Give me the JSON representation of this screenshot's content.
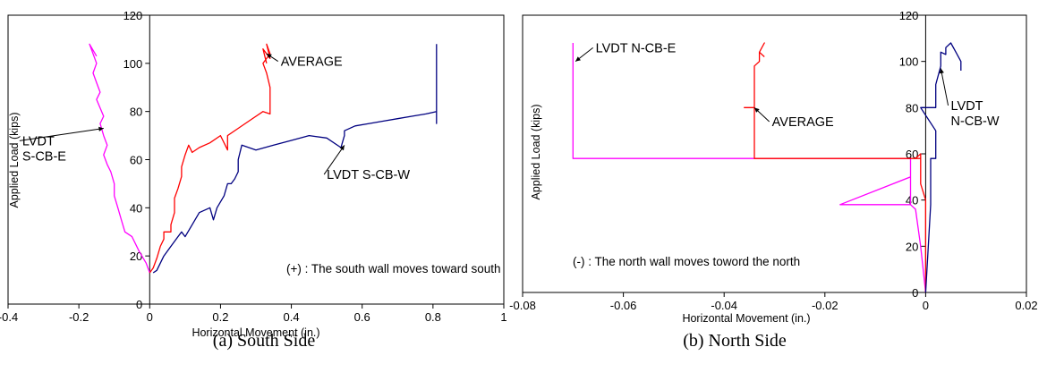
{
  "chart_data": [
    {
      "type": "line",
      "panel": "a",
      "caption": "(a) South Side",
      "xlabel": "Horizontal Movement (in.)",
      "ylabel": "Applied Load (kips)",
      "xlim": [
        -0.4,
        1.0
      ],
      "ylim": [
        0,
        120
      ],
      "xticks": [
        "-0.4",
        "-0.2",
        "0",
        "0.2",
        "0.4",
        "0.6",
        "0.8",
        "1"
      ],
      "xtick_values": [
        -0.4,
        -0.2,
        0,
        0.2,
        0.4,
        0.6,
        0.8,
        1.0
      ],
      "yticks": [
        "0",
        "20",
        "40",
        "60",
        "80",
        "100",
        "120"
      ],
      "ytick_values": [
        0,
        20,
        40,
        60,
        80,
        100,
        120
      ],
      "grid": false,
      "note": "(+) : The south wall moves toward south",
      "annotations": [
        {
          "lines": [
            "AVERAGE"
          ],
          "x": 0.37,
          "y": 99,
          "arrow_to": [
            0.33,
            104
          ]
        },
        {
          "lines": [
            "LVDT",
            "S-CB-E"
          ],
          "x": -0.36,
          "y": 66,
          "arrow_to": [
            -0.13,
            73
          ]
        },
        {
          "lines": [
            "LVDT S-CB-W"
          ],
          "x": 0.5,
          "y": 52,
          "arrow_to": [
            0.55,
            66
          ]
        }
      ],
      "series": [
        {
          "label": "LVDT S-CB-E",
          "color": "#ff00ff",
          "x": [
            0,
            -0.01,
            -0.03,
            -0.05,
            -0.07,
            -0.08,
            -0.09,
            -0.1,
            -0.1,
            -0.11,
            -0.12,
            -0.13,
            -0.12,
            -0.13,
            -0.14,
            -0.13,
            -0.15,
            -0.14,
            -0.15,
            -0.16,
            -0.15,
            -0.16,
            -0.17,
            -0.15
          ],
          "y": [
            13,
            17,
            22,
            28,
            30,
            35,
            40,
            45,
            50,
            55,
            58,
            62,
            66,
            70,
            75,
            78,
            85,
            88,
            92,
            96,
            100,
            104,
            108,
            103
          ]
        },
        {
          "label": "AVERAGE",
          "color": "#ff0000",
          "x": [
            0,
            0.01,
            0.02,
            0.03,
            0.04,
            0.04,
            0.06,
            0.06,
            0.07,
            0.07,
            0.08,
            0.09,
            0.09,
            0.1,
            0.11,
            0.12,
            0.14,
            0.17,
            0.2,
            0.22,
            0.22,
            0.25,
            0.28,
            0.32,
            0.34,
            0.34,
            0.33,
            0.32,
            0.34,
            0.33,
            0.34,
            0.32,
            0.33
          ],
          "y": [
            13,
            15,
            19,
            24,
            27,
            30,
            30,
            33,
            38,
            44,
            48,
            53,
            57,
            62,
            66,
            63,
            65,
            67,
            70,
            64,
            70,
            73,
            76,
            80,
            79,
            90,
            96,
            100,
            104,
            108,
            102,
            106,
            100
          ]
        },
        {
          "label": "LVDT S-CB-W",
          "color": "#000080",
          "x": [
            0.01,
            0.02,
            0.04,
            0.06,
            0.08,
            0.09,
            0.1,
            0.12,
            0.14,
            0.17,
            0.18,
            0.19,
            0.21,
            0.22,
            0.23,
            0.24,
            0.25,
            0.25,
            0.26,
            0.3,
            0.35,
            0.4,
            0.45,
            0.5,
            0.54,
            0.55,
            0.55,
            0.58,
            0.62,
            0.66,
            0.7,
            0.74,
            0.78,
            0.81,
            0.81,
            0.81,
            0.81
          ],
          "y": [
            13,
            14,
            20,
            24,
            28,
            30,
            28,
            33,
            38,
            40,
            35,
            40,
            45,
            50,
            50,
            52,
            55,
            60,
            66,
            64,
            66,
            68,
            70,
            69,
            65,
            70,
            72,
            74,
            75,
            76,
            77,
            78,
            79,
            80,
            75,
            90,
            108
          ]
        }
      ]
    },
    {
      "type": "line",
      "panel": "b",
      "caption": "(b) North Side",
      "xlabel": "Horizontal Movement (in.)",
      "ylabel": "Applied Load (kips)",
      "xlim": [
        -0.08,
        0.02
      ],
      "ylim": [
        0,
        120
      ],
      "xticks": [
        "-0.08",
        "-0.06",
        "-0.04",
        "-0.02",
        "0",
        "0.02"
      ],
      "xtick_values": [
        -0.08,
        -0.06,
        -0.04,
        -0.02,
        0,
        0.02
      ],
      "yticks": [
        "0",
        "20",
        "40",
        "60",
        "80",
        "100",
        "120"
      ],
      "ytick_values": [
        0,
        20,
        40,
        60,
        80,
        100,
        120
      ],
      "grid": false,
      "note": "(-) : The north wall moves toword the north",
      "annotations": [
        {
          "lines": [
            "LVDT N-CB-E"
          ],
          "x": -0.0655,
          "y": 104,
          "arrow_to": [
            -0.0695,
            100
          ]
        },
        {
          "lines": [
            "AVERAGE"
          ],
          "x": -0.0305,
          "y": 72,
          "arrow_to": [
            -0.034,
            80
          ]
        },
        {
          "lines": [
            "LVDT",
            "N-CB-W"
          ],
          "x": 0.005,
          "y": 79,
          "arrow_to": [
            0.003,
            97
          ]
        }
      ],
      "series": [
        {
          "label": "LVDT N-CB-E",
          "color": "#ff00ff",
          "x": [
            0,
            -0.001,
            -0.002,
            -0.003,
            -0.003,
            -0.017,
            -0.003,
            -0.003,
            -0.07,
            -0.07,
            -0.07
          ],
          "y": [
            0,
            20,
            36,
            38,
            50,
            38,
            38,
            58,
            58,
            100,
            108
          ]
        },
        {
          "label": "AVERAGE",
          "color": "#ff0000",
          "x": [
            0,
            0,
            0,
            -0.001,
            -0.001,
            -0.002,
            -0.001,
            -0.001,
            -0.034,
            -0.034,
            -0.036,
            -0.034,
            -0.034,
            -0.033,
            -0.033,
            -0.032,
            -0.033,
            -0.032
          ],
          "y": [
            0,
            20,
            40,
            47,
            58,
            58,
            60,
            58,
            58,
            80,
            80,
            80,
            98,
            100,
            104,
            108,
            104,
            102
          ]
        },
        {
          "label": "LVDT N-CB-W",
          "color": "#000080",
          "x": [
            0,
            0.001,
            0.001,
            0.002,
            0.002,
            -0.001,
            0.002,
            0.002,
            0.002,
            0.003,
            0.003,
            0.003,
            0.004,
            0.004,
            0.005,
            0.006,
            0.007,
            0.007
          ],
          "y": [
            0,
            38,
            58,
            58,
            70,
            80,
            80,
            82,
            90,
            98,
            102,
            104,
            103,
            106,
            108,
            104,
            100,
            96
          ]
        }
      ]
    }
  ]
}
